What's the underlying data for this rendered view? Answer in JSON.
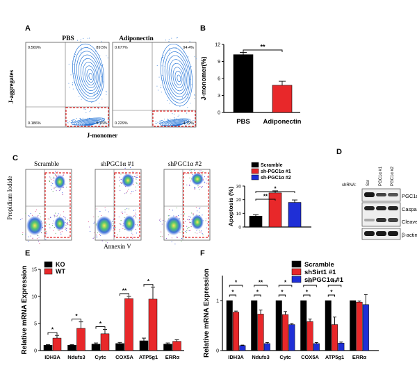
{
  "panels": {
    "A": "A",
    "B": "B",
    "C": "C",
    "D": "D",
    "E": "E",
    "F": "F"
  },
  "colors": {
    "black": "#000000",
    "red": "#e8282a",
    "blue": "#1f2fd6",
    "contour": "#2a78d8",
    "dashed": "#e02020"
  },
  "panelA": {
    "titles": [
      "PBS",
      "Adiponectin"
    ],
    "ylabel": "J-aggregates",
    "xlabel": "J-monomer",
    "pbs_quadrants": [
      "0.569%",
      "89.5%",
      "0.186%",
      "9.76%"
    ],
    "adipo_quadrants": [
      "0.677%",
      "94.4%",
      "0.229%",
      "4.72%"
    ]
  },
  "panelC": {
    "titles": [
      "Scramble",
      "shPGC1α #1",
      "shPGC1α #2"
    ],
    "ylabel": "Propidium Iodide",
    "xlabel": "Annexin V"
  },
  "panelD": {
    "shrna_label": "shRNA:",
    "lanes": [
      "Scr",
      "PGC1α #1",
      "PGC1α #2"
    ],
    "bands": [
      "PGC1α",
      "Caspase 3",
      "Cleaved",
      "β-actin"
    ]
  },
  "chart_data": [
    {
      "id": "B",
      "type": "bar",
      "categories": [
        "PBS",
        "Adiponectin"
      ],
      "values": [
        10.2,
        4.8
      ],
      "errors": [
        0.4,
        0.7
      ],
      "ylabel": "J-monomer(%)",
      "ylim": [
        0,
        12
      ],
      "yticks": [
        "0",
        "3",
        "6",
        "9",
        "12"
      ],
      "significance": [
        {
          "pair": [
            0,
            1
          ],
          "label": "**"
        }
      ]
    },
    {
      "id": "C",
      "type": "bar",
      "categories": [
        "Scramble",
        "sh-PGC1α #1",
        "sh-PGC1α #2"
      ],
      "legend": [
        "Scramble",
        "sh-PGC1α #1",
        "sh-PGC1α #2"
      ],
      "values": [
        8,
        25,
        18
      ],
      "errors": [
        1,
        1.5,
        1.8
      ],
      "ylabel": "Apoptosis (%)",
      "ylim": [
        0,
        30
      ],
      "yticks": [
        "0",
        "10",
        "20",
        "30"
      ],
      "significance": [
        {
          "pair": [
            0,
            1
          ],
          "label": "**"
        },
        {
          "pair": [
            0,
            2
          ],
          "label": "*"
        }
      ]
    },
    {
      "id": "E",
      "type": "bar",
      "categories": [
        "IDH3A",
        "Ndufs3",
        "Cytc",
        "COX5A",
        "ATP5g1",
        "ERRα"
      ],
      "series": [
        {
          "name": "KO",
          "values": [
            1,
            1,
            1.2,
            1.3,
            1.8,
            1.2
          ],
          "errors": [
            0.1,
            0.1,
            0.2,
            0.2,
            0.5,
            0.2
          ]
        },
        {
          "name": "WT",
          "values": [
            2.3,
            4.1,
            3.1,
            9.6,
            9.5,
            1.7
          ],
          "errors": [
            0.5,
            1.2,
            0.8,
            0.4,
            2.2,
            0.3
          ]
        }
      ],
      "ylabel": "Relative mRNA Expression",
      "ylim": [
        0,
        15
      ],
      "yticks": [
        "0",
        "5",
        "10",
        "15"
      ],
      "significance": [
        "*",
        "*",
        "*",
        "**",
        "*",
        ""
      ]
    },
    {
      "id": "F",
      "type": "bar",
      "categories": [
        "IDH3A",
        "Ndufs3",
        "Cytc",
        "COX5A",
        "ATP5g1",
        "ERRα"
      ],
      "series": [
        {
          "name": "Scramble",
          "values": [
            1,
            1,
            1,
            1,
            1,
            1
          ],
          "errors": [
            0,
            0,
            0,
            0,
            0,
            0
          ]
        },
        {
          "name": "shSirt1 #1",
          "values": [
            0.77,
            0.73,
            0.72,
            0.58,
            0.52,
            0.97
          ],
          "errors": [
            0.02,
            0.08,
            0.06,
            0.05,
            0.15,
            0.02
          ]
        },
        {
          "name": "shPGC1α #1",
          "values": [
            0.1,
            0.14,
            0.52,
            0.14,
            0.15,
            0.92
          ],
          "errors": [
            0.01,
            0.02,
            0.02,
            0.02,
            0.02,
            0.2
          ]
        }
      ],
      "ylabel": "Relative mRNA Expression",
      "ylim": [
        0,
        1.5
      ],
      "yticks": [
        "0",
        "1"
      ],
      "significance_upper": [
        "*",
        "**",
        "*",
        "**",
        "**",
        ""
      ],
      "significance_lower": [
        "*",
        "*",
        "*",
        "*",
        "*",
        ""
      ]
    }
  ]
}
